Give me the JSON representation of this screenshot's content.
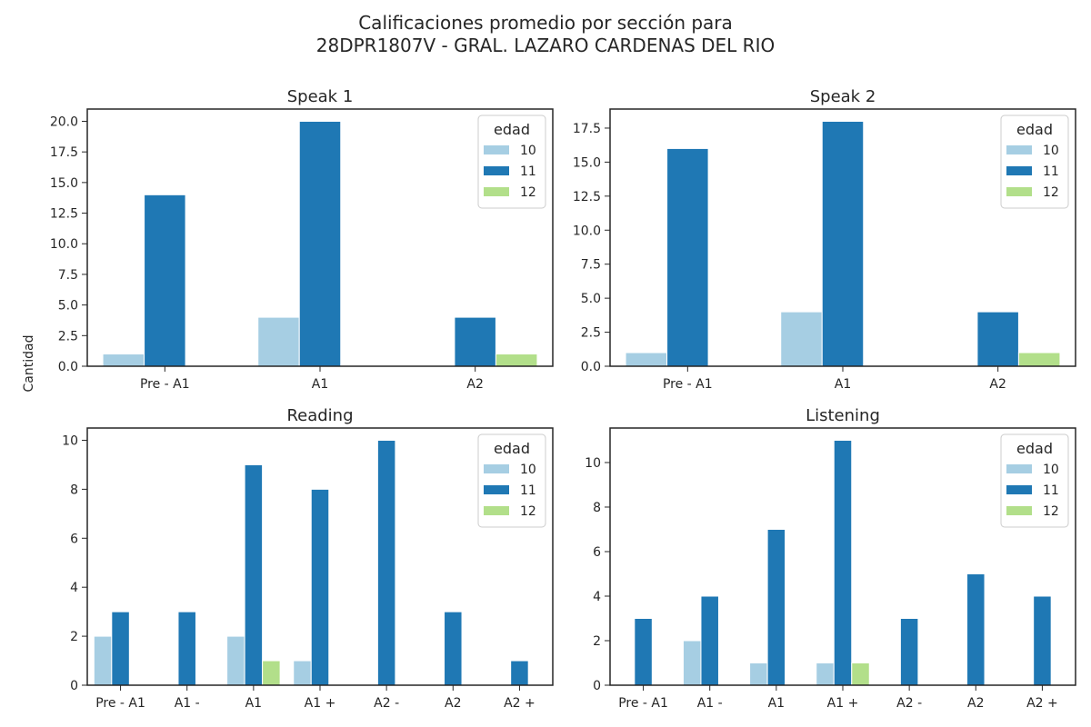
{
  "title_line1": "Calificaciones promedio por sección para",
  "title_line2": "28DPR1807V - GRAL. LAZARO CARDENAS DEL RIO",
  "ylabel": "Cantidad",
  "colors": {
    "10": "#a6cee3",
    "11": "#1f78b4",
    "12": "#b2df8a"
  },
  "chart_data": [
    {
      "type": "bar",
      "title": "Speak 1",
      "categories": [
        "Pre - A1",
        "A1",
        "A2"
      ],
      "ylim": [
        0,
        21
      ],
      "yticks": [
        "0.0",
        "2.5",
        "5.0",
        "7.5",
        "10.0",
        "12.5",
        "15.0",
        "17.5",
        "20.0"
      ],
      "legend_title": "edad",
      "legend_position": "upper right",
      "series": [
        {
          "name": "10",
          "values": [
            1,
            4,
            0
          ]
        },
        {
          "name": "11",
          "values": [
            14,
            20,
            4
          ]
        },
        {
          "name": "12",
          "values": [
            0,
            0,
            1
          ]
        }
      ]
    },
    {
      "type": "bar",
      "title": "Speak 2",
      "categories": [
        "Pre - A1",
        "A1",
        "A2"
      ],
      "ylim": [
        0,
        18.9
      ],
      "yticks": [
        "0.0",
        "2.5",
        "5.0",
        "7.5",
        "10.0",
        "12.5",
        "15.0",
        "17.5"
      ],
      "legend_title": "edad",
      "legend_position": "upper right",
      "series": [
        {
          "name": "10",
          "values": [
            1,
            4,
            0
          ]
        },
        {
          "name": "11",
          "values": [
            16,
            18,
            4
          ]
        },
        {
          "name": "12",
          "values": [
            0,
            0,
            1
          ]
        }
      ]
    },
    {
      "type": "bar",
      "title": "Reading",
      "categories": [
        "Pre - A1",
        "A1 -",
        "A1",
        "A1 +",
        "A2 -",
        "A2",
        "A2 +"
      ],
      "ylim": [
        0,
        10.5
      ],
      "yticks": [
        "0",
        "2",
        "4",
        "6",
        "8",
        "10"
      ],
      "legend_title": "edad",
      "legend_position": "upper right",
      "series": [
        {
          "name": "10",
          "values": [
            2,
            0,
            2,
            1,
            0,
            0,
            0
          ]
        },
        {
          "name": "11",
          "values": [
            3,
            3,
            9,
            8,
            10,
            3,
            1
          ]
        },
        {
          "name": "12",
          "values": [
            0,
            0,
            1,
            0,
            0,
            0,
            0
          ]
        }
      ]
    },
    {
      "type": "bar",
      "title": "Listening",
      "categories": [
        "Pre - A1",
        "A1 -",
        "A1",
        "A1 +",
        "A2 -",
        "A2",
        "A2 +"
      ],
      "ylim": [
        0,
        11.55
      ],
      "yticks": [
        "0",
        "2",
        "4",
        "6",
        "8",
        "10"
      ],
      "legend_title": "edad",
      "legend_position": "upper right",
      "series": [
        {
          "name": "10",
          "values": [
            0,
            2,
            1,
            1,
            0,
            0,
            0
          ]
        },
        {
          "name": "11",
          "values": [
            3,
            4,
            7,
            11,
            3,
            5,
            4
          ]
        },
        {
          "name": "12",
          "values": [
            0,
            0,
            0,
            1,
            0,
            0,
            0
          ]
        }
      ]
    }
  ]
}
